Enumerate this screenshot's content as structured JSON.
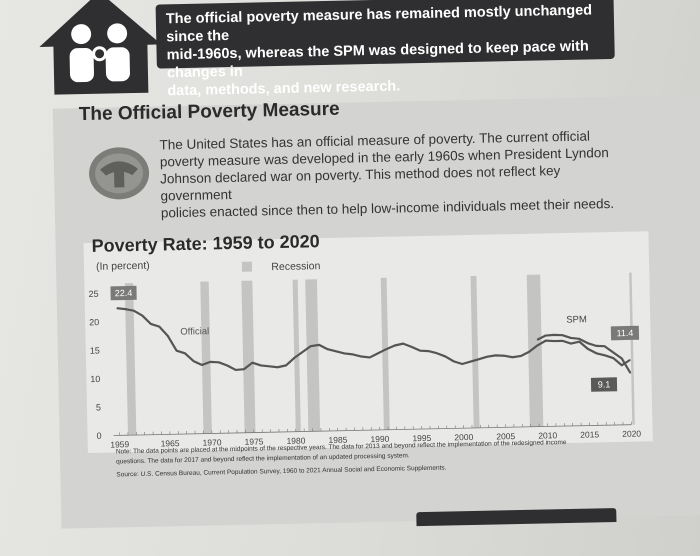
{
  "banner": {
    "text_line1": "The official poverty measure has remained mostly unchanged since the",
    "text_line2": "mid-1960s, whereas the SPM was designed to keep pace with changes in",
    "text_line3": "data, methods, and new research."
  },
  "section": {
    "title": "The Official Poverty Measure",
    "intro_line1": "The United States has an official measure of poverty. The current official",
    "intro_line2": "poverty measure was developed in the early 1960s when President Lyndon",
    "intro_line3": "Johnson declared war on poverty. This method does not reflect key government",
    "intro_line4": "policies enacted since then to help low-income individuals meet their needs."
  },
  "chart_data": {
    "type": "line",
    "title": "Poverty Rate: 1959 to 2020",
    "subtitle": "(In percent)",
    "legend_recession": "Recession",
    "ylim": [
      0,
      25
    ],
    "y_ticks": [
      "0",
      "5",
      "10",
      "15",
      "20",
      "25"
    ],
    "x_ticks": [
      "1959",
      "1965",
      "1970",
      "1975",
      "1980",
      "1985",
      "1990",
      "1995",
      "2000",
      "2005",
      "2010",
      "2015",
      "2020"
    ],
    "series": [
      {
        "name": "Official",
        "x": [
          1959,
          1960,
          1961,
          1962,
          1963,
          1964,
          1965,
          1966,
          1967,
          1968,
          1969,
          1970,
          1971,
          1972,
          1973,
          1974,
          1975,
          1976,
          1977,
          1978,
          1979,
          1980,
          1981,
          1982,
          1983,
          1984,
          1985,
          1986,
          1987,
          1988,
          1989,
          1990,
          1991,
          1992,
          1993,
          1994,
          1995,
          1996,
          1997,
          1998,
          1999,
          2000,
          2001,
          2002,
          2003,
          2004,
          2005,
          2006,
          2007,
          2008,
          2009,
          2010,
          2011,
          2012,
          2013,
          2014,
          2015,
          2016,
          2017,
          2018,
          2019,
          2020
        ],
        "values": [
          22.4,
          22.2,
          21.9,
          21.0,
          19.5,
          19.0,
          17.3,
          14.7,
          14.2,
          12.8,
          12.1,
          12.6,
          12.5,
          11.9,
          11.1,
          11.2,
          12.3,
          11.8,
          11.6,
          11.4,
          11.7,
          13.0,
          14.0,
          15.0,
          15.2,
          14.4,
          14.0,
          13.6,
          13.4,
          13.0,
          12.8,
          13.5,
          14.2,
          14.8,
          15.1,
          14.5,
          13.8,
          13.7,
          13.3,
          12.7,
          11.8,
          11.3,
          11.7,
          12.1,
          12.5,
          12.7,
          12.6,
          12.3,
          12.5,
          13.2,
          14.3,
          15.1,
          15.0,
          15.0,
          14.5,
          14.8,
          13.5,
          12.7,
          12.3,
          11.8,
          10.5,
          11.4
        ]
      },
      {
        "name": "SPM",
        "x": [
          2009,
          2010,
          2011,
          2012,
          2013,
          2014,
          2015,
          2016,
          2017,
          2018,
          2019,
          2020
        ],
        "values": [
          15.3,
          16.0,
          16.1,
          16.0,
          15.5,
          15.3,
          14.5,
          14.0,
          13.9,
          12.8,
          11.7,
          9.1
        ]
      }
    ],
    "data_labels": {
      "start": "22.4",
      "official_end": "11.4",
      "spm_end": "9.1"
    },
    "colors": {
      "official": "#555555",
      "spm": "#555555",
      "recession": "#c4c4c2"
    }
  },
  "footer": {
    "note_line1": "Note: The data points are placed at the midpoints of the respective years. The data for 2013 and beyond reflect the implementation of the redesigned income",
    "note_line2": "questions. The data for 2017 and beyond reflect the implementation of an updated processing system.",
    "source": "Source: U.S. Census Bureau, Current Population Survey, 1960 to 2021 Annual Social and Economic Supplements."
  },
  "icons": {
    "house": "family-house-icon",
    "seal": "government-seal-icon"
  }
}
